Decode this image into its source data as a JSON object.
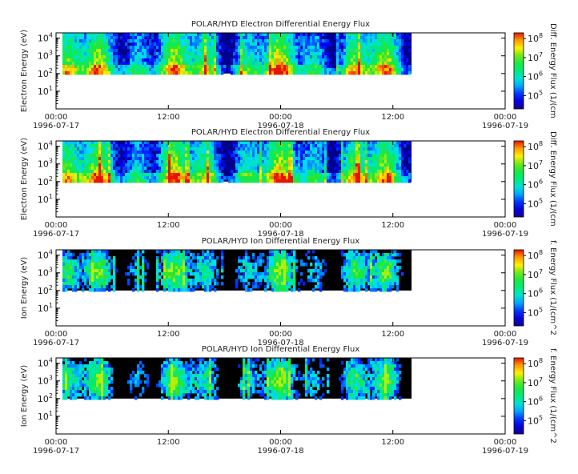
{
  "chart_data": [
    {
      "type": "heatmap",
      "title": "POLAR/HYD  Electron Differential Energy Flux",
      "ylabel": "Electron Energy (eV)",
      "colorbar_label": "Diff. Energy Flux (1/(cm",
      "yscale": "log",
      "ylim": [
        1,
        20000
      ],
      "y_ticks": [
        {
          "base": "10",
          "exp": "1"
        },
        {
          "base": "10",
          "exp": "2"
        },
        {
          "base": "10",
          "exp": "3"
        },
        {
          "base": "10",
          "exp": "4"
        }
      ],
      "x_ticks": [
        {
          "time": "00:00",
          "date": "1996-07-17"
        },
        {
          "time": "12:00",
          "date": ""
        },
        {
          "time": "00:00",
          "date": "1996-07-18"
        },
        {
          "time": "12:00",
          "date": ""
        },
        {
          "time": "00:00",
          "date": "1996-07-19"
        }
      ],
      "xlim": [
        "1996-07-17 00:00",
        "1996-07-19 00:00"
      ],
      "data_end": "1996-07-18 14:00",
      "energy_range_eV": [
        100,
        20000
      ],
      "colorbar_ticks": [
        {
          "base": "10",
          "exp": "5"
        },
        {
          "base": "10",
          "exp": "6"
        },
        {
          "base": "10",
          "exp": "7"
        },
        {
          "base": "10",
          "exp": "8"
        }
      ],
      "colorbar_range": [
        20000,
        200000000
      ]
    },
    {
      "type": "heatmap",
      "title": "POLAR/HYD  Electron Differential Energy Flux",
      "ylabel": "Electron Energy (eV)",
      "colorbar_label": "Diff. Energy Flux (1/(cm",
      "yscale": "log",
      "ylim": [
        1,
        20000
      ],
      "y_ticks": [
        {
          "base": "10",
          "exp": "1"
        },
        {
          "base": "10",
          "exp": "2"
        },
        {
          "base": "10",
          "exp": "3"
        },
        {
          "base": "10",
          "exp": "4"
        }
      ],
      "x_ticks": [
        {
          "time": "00:00",
          "date": "1996-07-17"
        },
        {
          "time": "12:00",
          "date": ""
        },
        {
          "time": "00:00",
          "date": "1996-07-18"
        },
        {
          "time": "12:00",
          "date": ""
        },
        {
          "time": "00:00",
          "date": "1996-07-19"
        }
      ],
      "xlim": [
        "1996-07-17 00:00",
        "1996-07-19 00:00"
      ],
      "data_end": "1996-07-18 14:00",
      "energy_range_eV": [
        100,
        20000
      ],
      "colorbar_ticks": [
        {
          "base": "10",
          "exp": "5"
        },
        {
          "base": "10",
          "exp": "6"
        },
        {
          "base": "10",
          "exp": "7"
        },
        {
          "base": "10",
          "exp": "8"
        }
      ],
      "colorbar_range": [
        20000,
        200000000
      ]
    },
    {
      "type": "heatmap",
      "title": "POLAR/HYD  Ion Differential Energy Flux",
      "ylabel": "Ion Energy (eV)",
      "colorbar_label": "f. Energy Flux (1/(cm^2",
      "yscale": "log",
      "ylim": [
        1,
        20000
      ],
      "y_ticks": [
        {
          "base": "10",
          "exp": "1"
        },
        {
          "base": "10",
          "exp": "2"
        },
        {
          "base": "10",
          "exp": "3"
        },
        {
          "base": "10",
          "exp": "4"
        }
      ],
      "x_ticks": [
        {
          "time": "00:00",
          "date": "1996-07-17"
        },
        {
          "time": "12:00",
          "date": ""
        },
        {
          "time": "00:00",
          "date": "1996-07-18"
        },
        {
          "time": "12:00",
          "date": ""
        },
        {
          "time": "00:00",
          "date": "1996-07-19"
        }
      ],
      "xlim": [
        "1996-07-17 00:00",
        "1996-07-19 00:00"
      ],
      "data_end": "1996-07-18 14:00",
      "energy_range_eV": [
        100,
        20000
      ],
      "colorbar_ticks": [
        {
          "base": "10",
          "exp": "5"
        },
        {
          "base": "10",
          "exp": "6"
        },
        {
          "base": "10",
          "exp": "7"
        },
        {
          "base": "10",
          "exp": "8"
        }
      ],
      "colorbar_range": [
        20000,
        200000000
      ]
    },
    {
      "type": "heatmap",
      "title": "POLAR/HYD  Ion Differential Energy Flux",
      "ylabel": "Ion Energy (eV)",
      "colorbar_label": "f. Energy Flux (1/(cm^2",
      "yscale": "log",
      "ylim": [
        1,
        20000
      ],
      "y_ticks": [
        {
          "base": "10",
          "exp": "1"
        },
        {
          "base": "10",
          "exp": "2"
        },
        {
          "base": "10",
          "exp": "3"
        },
        {
          "base": "10",
          "exp": "4"
        }
      ],
      "x_ticks": [
        {
          "time": "00:00",
          "date": "1996-07-17"
        },
        {
          "time": "12:00",
          "date": ""
        },
        {
          "time": "00:00",
          "date": "1996-07-18"
        },
        {
          "time": "12:00",
          "date": ""
        },
        {
          "time": "00:00",
          "date": "1996-07-19"
        }
      ],
      "xlim": [
        "1996-07-17 00:00",
        "1996-07-19 00:00"
      ],
      "data_end": "1996-07-18 14:00",
      "energy_range_eV": [
        100,
        20000
      ],
      "colorbar_ticks": [
        {
          "base": "10",
          "exp": "5"
        },
        {
          "base": "10",
          "exp": "6"
        },
        {
          "base": "10",
          "exp": "7"
        },
        {
          "base": "10",
          "exp": "8"
        }
      ],
      "colorbar_range": [
        20000,
        200000000
      ]
    }
  ]
}
